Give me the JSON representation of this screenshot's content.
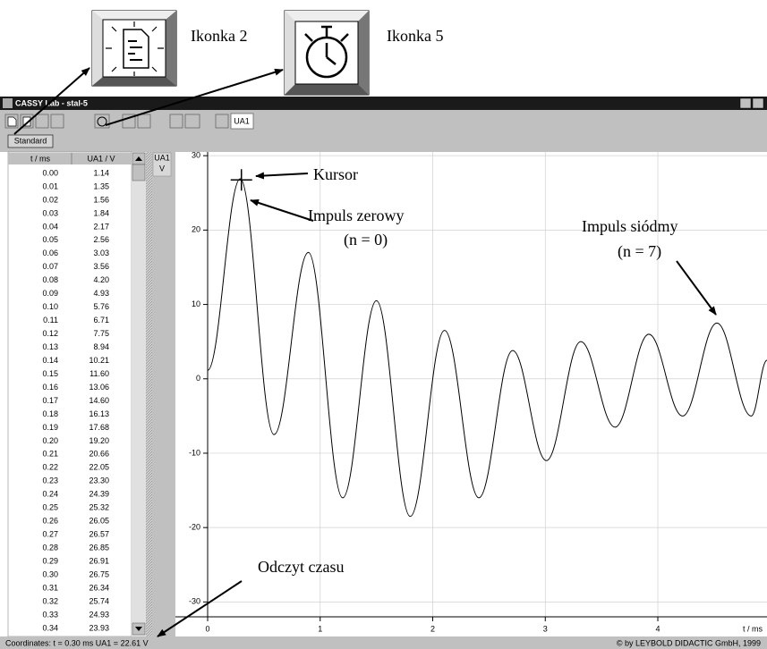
{
  "annotations": {
    "icon2": "Ikonka 2",
    "icon5": "Ikonka 5",
    "cursor": "Kursor",
    "pulse0": "Impuls zerowy",
    "pulse0_n": "(n = 0)",
    "pulse7": "Impuls siódmy",
    "pulse7_n": "(n = 7)",
    "time_reading": "Odczyt czasu"
  },
  "window": {
    "title": "CASSY Lab - stal-5",
    "toolbar_channel": "UA1",
    "tab": "Standard"
  },
  "table": {
    "columns": [
      "t / ms",
      "UA1 / V"
    ],
    "rows": [
      [
        "0.00",
        "1.14"
      ],
      [
        "0.01",
        "1.35"
      ],
      [
        "0.02",
        "1.56"
      ],
      [
        "0.03",
        "1.84"
      ],
      [
        "0.04",
        "2.17"
      ],
      [
        "0.05",
        "2.56"
      ],
      [
        "0.06",
        "3.03"
      ],
      [
        "0.07",
        "3.56"
      ],
      [
        "0.08",
        "4.20"
      ],
      [
        "0.09",
        "4.93"
      ],
      [
        "0.10",
        "5.76"
      ],
      [
        "0.11",
        "6.71"
      ],
      [
        "0.12",
        "7.75"
      ],
      [
        "0.13",
        "8.94"
      ],
      [
        "0.14",
        "10.21"
      ],
      [
        "0.15",
        "11.60"
      ],
      [
        "0.16",
        "13.06"
      ],
      [
        "0.17",
        "14.60"
      ],
      [
        "0.18",
        "16.13"
      ],
      [
        "0.19",
        "17.68"
      ],
      [
        "0.20",
        "19.20"
      ],
      [
        "0.21",
        "20.66"
      ],
      [
        "0.22",
        "22.05"
      ],
      [
        "0.23",
        "23.30"
      ],
      [
        "0.24",
        "24.39"
      ],
      [
        "0.25",
        "25.32"
      ],
      [
        "0.26",
        "26.05"
      ],
      [
        "0.27",
        "26.57"
      ],
      [
        "0.28",
        "26.85"
      ],
      [
        "0.29",
        "26.91"
      ],
      [
        "0.30",
        "26.75"
      ],
      [
        "0.31",
        "26.34"
      ],
      [
        "0.32",
        "25.74"
      ],
      [
        "0.33",
        "24.93"
      ],
      [
        "0.34",
        "23.93"
      ]
    ]
  },
  "graph": {
    "y_label": "UA1",
    "y_unit": "V",
    "x_label": "t / ms",
    "xlim": [
      0,
      4.97
    ],
    "ylim": [
      -32,
      30.5
    ],
    "xticks": [
      0,
      1,
      2,
      3,
      4
    ],
    "yticks": [
      30,
      20,
      10,
      0,
      -10,
      -20,
      -30
    ],
    "grid": true,
    "color": "#000000",
    "cursor": {
      "t": 0.3,
      "u": 26.75
    },
    "curve": {
      "t": [
        0,
        0.29,
        0.59,
        0.895,
        1.2,
        1.5,
        1.8,
        2.105,
        2.41,
        2.71,
        3.01,
        3.315,
        3.62,
        3.92,
        4.22,
        4.525,
        4.83,
        4.97
      ],
      "u": [
        1.14,
        26.9,
        -7.5,
        17,
        -16,
        10.5,
        -18.5,
        6.5,
        -16,
        3.8,
        -11,
        5,
        -6.5,
        6,
        -5,
        7.5,
        -5,
        2.5
      ]
    }
  },
  "status": {
    "coordinates": "Coordinates:  t = 0.30 ms   UA1 = 22.61 V",
    "copyright": "© by LEYBOLD DIDACTIC GmbH, 1999"
  }
}
